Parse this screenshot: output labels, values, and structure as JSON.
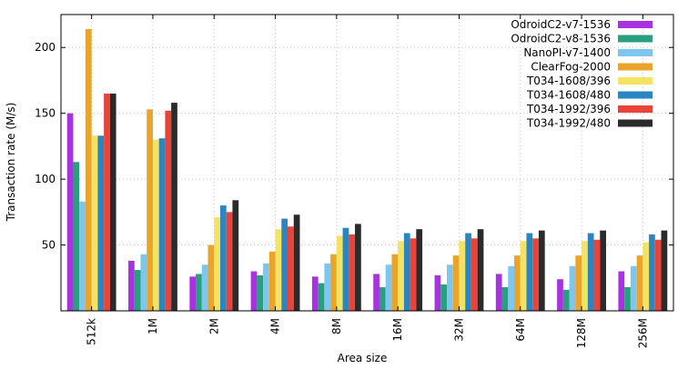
{
  "chart_data": {
    "type": "bar",
    "title": "",
    "xlabel": "Area size",
    "ylabel": "Transaction rate (M/s)",
    "ylim": [
      0,
      225
    ],
    "yticks": [
      50,
      100,
      150,
      200
    ],
    "grid": true,
    "legend_position": "top-right",
    "categories": [
      "512k",
      "1M",
      "2M",
      "4M",
      "8M",
      "16M",
      "32M",
      "64M",
      "128M",
      "256M"
    ],
    "series": [
      {
        "name": "OdroidC2-v7-1536",
        "color": "#a832e0",
        "values": [
          150,
          38,
          26,
          30,
          26,
          28,
          27,
          28,
          24,
          30
        ]
      },
      {
        "name": "OdroidC2-v8-1536",
        "color": "#2a9f7f",
        "values": [
          113,
          31,
          28,
          27,
          21,
          18,
          20,
          18,
          16,
          18
        ]
      },
      {
        "name": "NanoPI-v7-1400",
        "color": "#7ec6ef",
        "values": [
          83,
          43,
          35,
          36,
          36,
          35,
          35,
          34,
          34,
          34
        ]
      },
      {
        "name": "ClearFog-2000",
        "color": "#eaa42a",
        "values": [
          214,
          153,
          50,
          45,
          43,
          43,
          42,
          42,
          42,
          42
        ]
      },
      {
        "name": "T034-1608/396",
        "color": "#f4e362",
        "values": [
          133,
          130,
          71,
          62,
          57,
          53,
          53,
          53,
          53,
          52
        ]
      },
      {
        "name": "T034-1608/480",
        "color": "#2a86c2",
        "values": [
          133,
          131,
          80,
          70,
          63,
          59,
          59,
          59,
          59,
          58
        ]
      },
      {
        "name": "T034-1992/396",
        "color": "#e8443a",
        "values": [
          165,
          152,
          75,
          64,
          58,
          55,
          55,
          55,
          54,
          54
        ]
      },
      {
        "name": "T034-1992/480",
        "color": "#2b2b2b",
        "values": [
          165,
          158,
          84,
          73,
          66,
          62,
          62,
          61,
          61,
          61
        ]
      }
    ]
  }
}
